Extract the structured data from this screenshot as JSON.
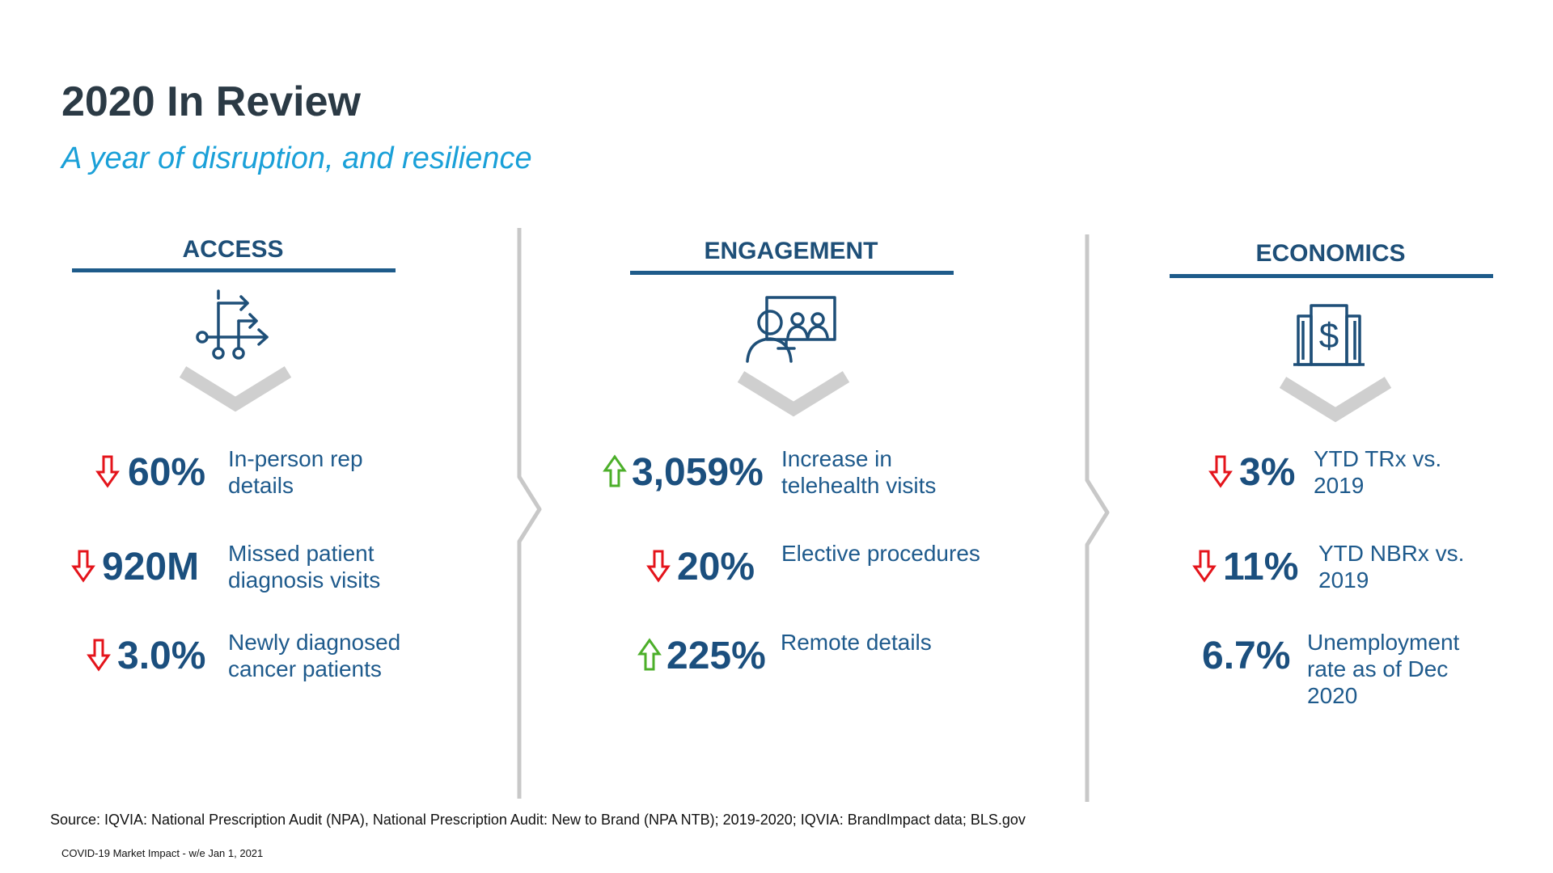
{
  "title": "2020 In Review",
  "subtitle": "A year of disruption, and resilience",
  "columns": [
    {
      "header": "ACCESS",
      "icon": "routing-arrows-icon",
      "stats": [
        {
          "direction": "down",
          "value": "60%",
          "description": "In-person rep details"
        },
        {
          "direction": "down",
          "value": "920M",
          "description": "Missed patient diagnosis visits"
        },
        {
          "direction": "down",
          "value": "3.0%",
          "description": "Newly diagnosed cancer patients"
        }
      ]
    },
    {
      "header": "ENGAGEMENT",
      "icon": "video-conference-icon",
      "stats": [
        {
          "direction": "up",
          "value": "3,059%",
          "description": "Increase in telehealth visits"
        },
        {
          "direction": "down",
          "value": "20%",
          "description": "Elective procedures"
        },
        {
          "direction": "up",
          "value": "225%",
          "description": "Remote details"
        }
      ]
    },
    {
      "header": "ECONOMICS",
      "icon": "dollar-building-icon",
      "stats": [
        {
          "direction": "down",
          "value": "3%",
          "description": "YTD TRx vs. 2019"
        },
        {
          "direction": "down",
          "value": "11%",
          "description": "YTD NBRx vs. 2019"
        },
        {
          "direction": "none",
          "value": "6.7%",
          "description": "Unemployment rate as of Dec 2020"
        }
      ]
    }
  ],
  "source": "Source: IQVIA:  National Prescription Audit (NPA), National Prescription Audit: New to Brand (NPA NTB); 2019-2020; IQVIA:  BrandImpact data; BLS.gov",
  "footer": "COVID-19 Market Impact - w/e Jan 1, 2021",
  "colors": {
    "title": "#2b3a45",
    "subtitle": "#1aa0d8",
    "accent_blue": "#1e5b8a",
    "down_arrow": "#e4141b",
    "up_arrow": "#4caf2a",
    "divider": "#c8c8c8"
  }
}
